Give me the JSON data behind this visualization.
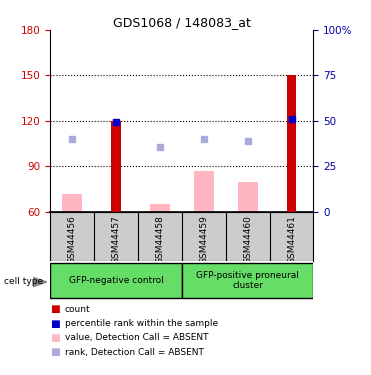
{
  "title": "GDS1068 / 148083_at",
  "samples": [
    "GSM44456",
    "GSM44457",
    "GSM44458",
    "GSM44459",
    "GSM44460",
    "GSM44461"
  ],
  "ylim_left": [
    60,
    180
  ],
  "ylim_right": [
    0,
    100
  ],
  "yticks_left": [
    60,
    90,
    120,
    150,
    180
  ],
  "yticks_right": [
    0,
    25,
    50,
    75,
    100
  ],
  "red_bars": [
    null,
    120,
    null,
    null,
    null,
    150
  ],
  "blue_squares_y": [
    null,
    119,
    null,
    null,
    null,
    121
  ],
  "pink_bars": [
    72,
    null,
    65,
    87,
    80,
    null
  ],
  "lightblue_squares_y": [
    108,
    null,
    103,
    108,
    107,
    null
  ],
  "red_color": "#CC0000",
  "blue_color": "#0000CC",
  "pink_color": "#FFB6C1",
  "lightblue_color": "#AAAADD",
  "axis_color_left": "#CC0000",
  "axis_color_right": "#0000AA",
  "bg_color": "#CCCCCC",
  "green_color": "#66DD66",
  "legend_items": [
    {
      "label": "count",
      "color": "#CC0000"
    },
    {
      "label": "percentile rank within the sample",
      "color": "#0000CC"
    },
    {
      "label": "value, Detection Call = ABSENT",
      "color": "#FFB6C1"
    },
    {
      "label": "rank, Detection Call = ABSENT",
      "color": "#AAAADD"
    }
  ]
}
